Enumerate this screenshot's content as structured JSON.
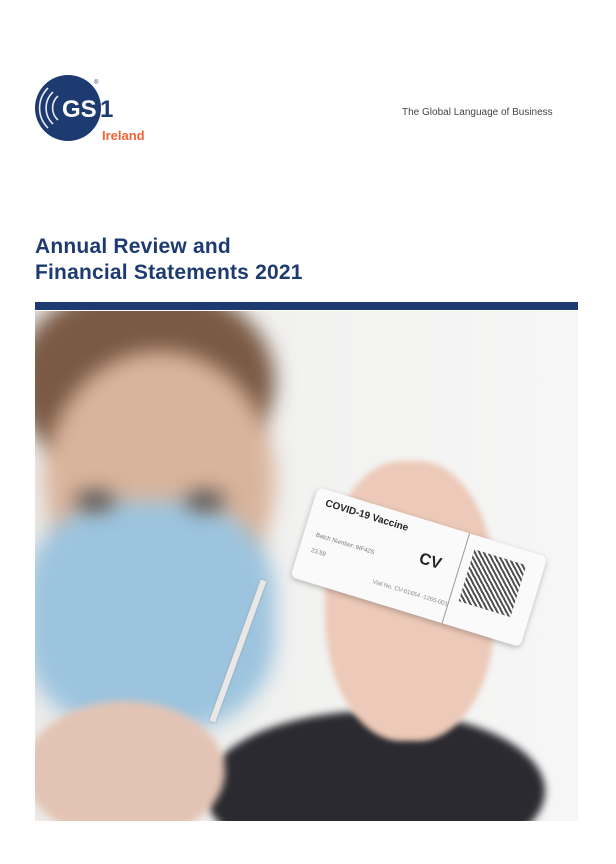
{
  "logo": {
    "brand": "GS1",
    "region": "Ireland",
    "brand_color": "#1d3b70",
    "region_color": "#f26334"
  },
  "tagline": "The Global Language of Business",
  "title": {
    "line1": "Annual Review and",
    "line2": "Financial Statements 2021"
  },
  "photo": {
    "label_title": "COVID-19 Vaccine",
    "label_code": "CV",
    "batch": "Batch Number: 9IF42S",
    "number": "23.59",
    "vial": "Vial No. CV-01654 -1265-001"
  }
}
